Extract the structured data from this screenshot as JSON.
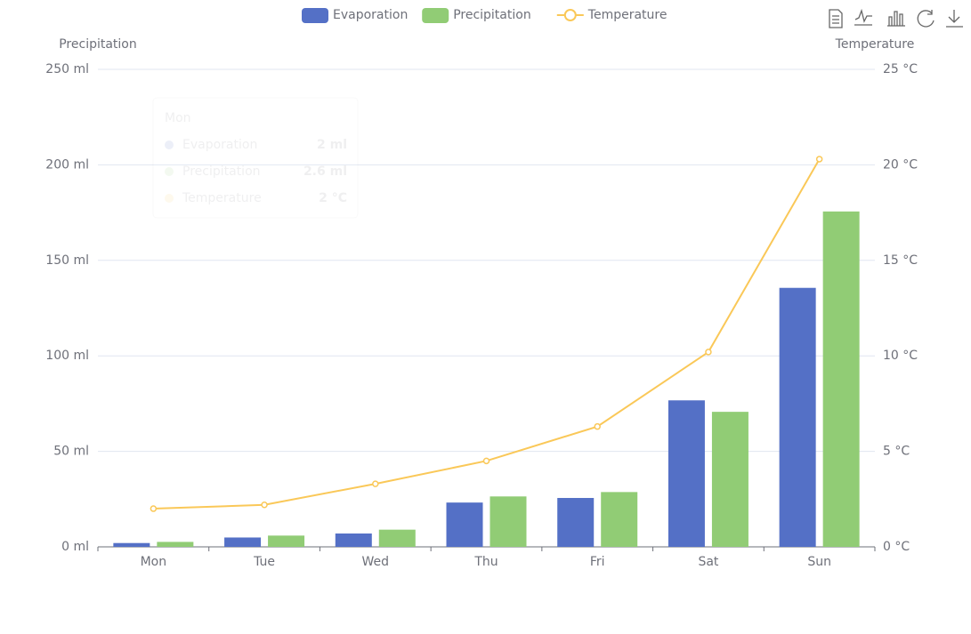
{
  "chart_data": {
    "type": "bar-line",
    "categories": [
      "Mon",
      "Tue",
      "Wed",
      "Thu",
      "Fri",
      "Sat",
      "Sun"
    ],
    "series": [
      {
        "name": "Evaporation",
        "type": "bar",
        "color": "#5470c6",
        "values": [
          2.0,
          4.9,
          7.0,
          23.2,
          25.6,
          76.7,
          135.6
        ]
      },
      {
        "name": "Precipitation",
        "type": "bar",
        "color": "#91cc75",
        "values": [
          2.6,
          5.9,
          9.0,
          26.4,
          28.7,
          70.7,
          175.6
        ]
      },
      {
        "name": "Temperature",
        "type": "line",
        "axis": "y2",
        "color": "#fac858",
        "values": [
          2.0,
          2.2,
          3.3,
          4.5,
          6.3,
          10.2,
          20.3
        ]
      }
    ],
    "ylabel": "Precipitation",
    "y2label": "Temperature",
    "ylim": [
      0,
      250
    ],
    "yticks": [
      {
        "value": 0,
        "label": "0 ml"
      },
      {
        "value": 50,
        "label": "50 ml"
      },
      {
        "value": 100,
        "label": "100 ml"
      },
      {
        "value": 150,
        "label": "150 ml"
      },
      {
        "value": 200,
        "label": "200 ml"
      },
      {
        "value": 250,
        "label": "250 ml"
      }
    ],
    "y2lim": [
      0,
      25
    ],
    "y2ticks": [
      {
        "value": 0,
        "label": "0 °C"
      },
      {
        "value": 5,
        "label": "5 °C"
      },
      {
        "value": 10,
        "label": "10 °C"
      },
      {
        "value": 15,
        "label": "15 °C"
      },
      {
        "value": 20,
        "label": "20 °C"
      },
      {
        "value": 25,
        "label": "25 °C"
      }
    ],
    "grid": true,
    "tooltip": {
      "values": [
        "2 ml",
        "2.6 ml",
        "2 °C"
      ]
    }
  }
}
